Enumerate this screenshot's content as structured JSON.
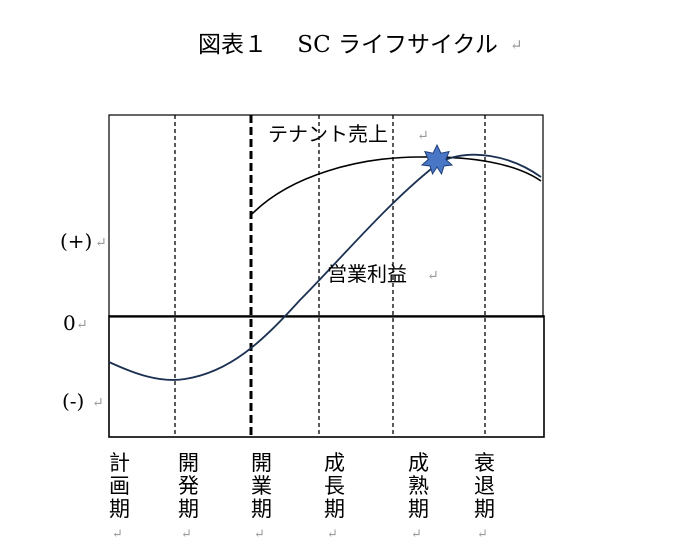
{
  "title": "図表１　 SC ライフサイクル",
  "return_mark": "↵",
  "labels": {
    "sales": "テナント売上",
    "profit": "営業利益",
    "plus": "(+)",
    "zero": "0",
    "minus": "(-)"
  },
  "phases": [
    {
      "id": "planning",
      "chars": [
        "計",
        "画",
        "期"
      ]
    },
    {
      "id": "development",
      "chars": [
        "開",
        "発",
        "期"
      ]
    },
    {
      "id": "opening",
      "chars": [
        "開",
        "業",
        "期"
      ]
    },
    {
      "id": "growth",
      "chars": [
        "成",
        "長",
        "期"
      ]
    },
    {
      "id": "maturity",
      "chars": [
        "成",
        "熟",
        "期"
      ]
    },
    {
      "id": "decline",
      "chars": [
        "衰",
        "退",
        "期"
      ]
    }
  ],
  "colors": {
    "profit_line": "#1c3152",
    "sales_line": "#000000",
    "star": "#4a76c6",
    "star_stroke": "#1f3f7a"
  },
  "icons": {
    "peak": "star-icon"
  }
}
